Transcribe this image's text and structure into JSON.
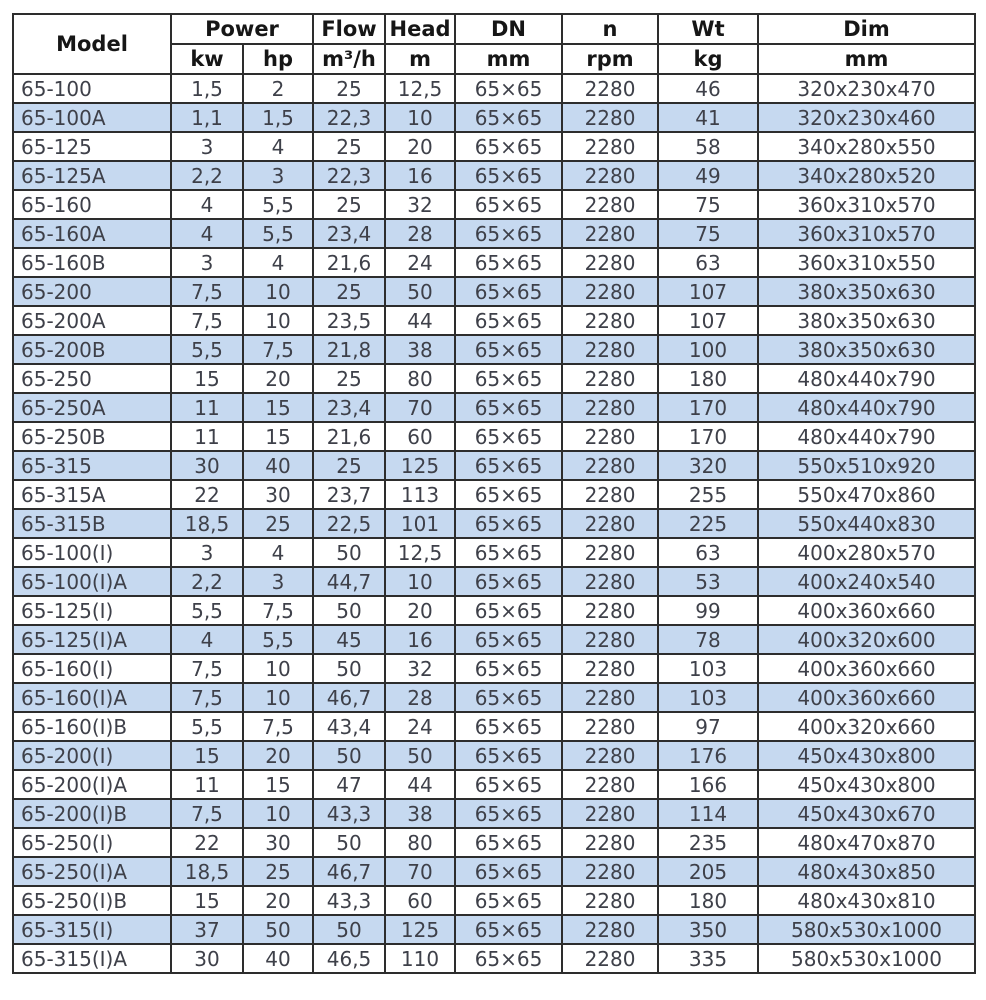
{
  "chart_data": {
    "type": "table",
    "header": {
      "model": "Model",
      "power": "Power",
      "power_units": {
        "kw": "kw",
        "hp": "hp"
      },
      "flow": {
        "label": "Flow",
        "unit": "m³/h"
      },
      "head": {
        "label": "Head",
        "unit": "m"
      },
      "dn": {
        "label": "DN",
        "unit": "mm"
      },
      "n": {
        "label": "n",
        "unit": "rpm"
      },
      "wt": {
        "label": "Wt",
        "unit": "kg"
      },
      "dim": {
        "label": "Dim",
        "unit": "mm"
      }
    },
    "rows": [
      [
        "65-100",
        "1,5",
        "2",
        "25",
        "12,5",
        "65×65",
        "2280",
        "46",
        "320x230x470"
      ],
      [
        "65-100A",
        "1,1",
        "1,5",
        "22,3",
        "10",
        "65×65",
        "2280",
        "41",
        "320x230x460"
      ],
      [
        "65-125",
        "3",
        "4",
        "25",
        "20",
        "65×65",
        "2280",
        "58",
        "340x280x550"
      ],
      [
        "65-125A",
        "2,2",
        "3",
        "22,3",
        "16",
        "65×65",
        "2280",
        "49",
        "340x280x520"
      ],
      [
        "65-160",
        "4",
        "5,5",
        "25",
        "32",
        "65×65",
        "2280",
        "75",
        "360x310x570"
      ],
      [
        "65-160A",
        "4",
        "5,5",
        "23,4",
        "28",
        "65×65",
        "2280",
        "75",
        "360x310x570"
      ],
      [
        "65-160B",
        "3",
        "4",
        "21,6",
        "24",
        "65×65",
        "2280",
        "63",
        "360x310x550"
      ],
      [
        "65-200",
        "7,5",
        "10",
        "25",
        "50",
        "65×65",
        "2280",
        "107",
        "380x350x630"
      ],
      [
        "65-200A",
        "7,5",
        "10",
        "23,5",
        "44",
        "65×65",
        "2280",
        "107",
        "380x350x630"
      ],
      [
        "65-200B",
        "5,5",
        "7,5",
        "21,8",
        "38",
        "65×65",
        "2280",
        "100",
        "380x350x630"
      ],
      [
        "65-250",
        "15",
        "20",
        "25",
        "80",
        "65×65",
        "2280",
        "180",
        "480x440x790"
      ],
      [
        "65-250A",
        "11",
        "15",
        "23,4",
        "70",
        "65×65",
        "2280",
        "170",
        "480x440x790"
      ],
      [
        "65-250B",
        "11",
        "15",
        "21,6",
        "60",
        "65×65",
        "2280",
        "170",
        "480x440x790"
      ],
      [
        "65-315",
        "30",
        "40",
        "25",
        "125",
        "65×65",
        "2280",
        "320",
        "550x510x920"
      ],
      [
        "65-315A",
        "22",
        "30",
        "23,7",
        "113",
        "65×65",
        "2280",
        "255",
        "550x470x860"
      ],
      [
        "65-315B",
        "18,5",
        "25",
        "22,5",
        "101",
        "65×65",
        "2280",
        "225",
        "550x440x830"
      ],
      [
        "65-100(I)",
        "3",
        "4",
        "50",
        "12,5",
        "65×65",
        "2280",
        "63",
        "400x280x570"
      ],
      [
        "65-100(I)A",
        "2,2",
        "3",
        "44,7",
        "10",
        "65×65",
        "2280",
        "53",
        "400x240x540"
      ],
      [
        "65-125(I)",
        "5,5",
        "7,5",
        "50",
        "20",
        "65×65",
        "2280",
        "99",
        "400x360x660"
      ],
      [
        "65-125(I)A",
        "4",
        "5,5",
        "45",
        "16",
        "65×65",
        "2280",
        "78",
        "400x320x600"
      ],
      [
        "65-160(I)",
        "7,5",
        "10",
        "50",
        "32",
        "65×65",
        "2280",
        "103",
        "400x360x660"
      ],
      [
        "65-160(I)A",
        "7,5",
        "10",
        "46,7",
        "28",
        "65×65",
        "2280",
        "103",
        "400x360x660"
      ],
      [
        "65-160(I)B",
        "5,5",
        "7,5",
        "43,4",
        "24",
        "65×65",
        "2280",
        "97",
        "400x320x660"
      ],
      [
        "65-200(I)",
        "15",
        "20",
        "50",
        "50",
        "65×65",
        "2280",
        "176",
        "450x430x800"
      ],
      [
        "65-200(I)A",
        "11",
        "15",
        "47",
        "44",
        "65×65",
        "2280",
        "166",
        "450x430x800"
      ],
      [
        "65-200(I)B",
        "7,5",
        "10",
        "43,3",
        "38",
        "65×65",
        "2280",
        "114",
        "450x430x670"
      ],
      [
        "65-250(I)",
        "22",
        "30",
        "50",
        "80",
        "65×65",
        "2280",
        "235",
        "480x470x870"
      ],
      [
        "65-250(I)A",
        "18,5",
        "25",
        "46,7",
        "70",
        "65×65",
        "2280",
        "205",
        "480x430x850"
      ],
      [
        "65-250(I)B",
        "15",
        "20",
        "43,3",
        "60",
        "65×65",
        "2280",
        "180",
        "480x430x810"
      ],
      [
        "65-315(I)",
        "37",
        "50",
        "50",
        "125",
        "65×65",
        "2280",
        "350",
        "580x530x1000"
      ],
      [
        "65-315(I)A",
        "30",
        "40",
        "46,5",
        "110",
        "65×65",
        "2280",
        "335",
        "580x530x1000"
      ]
    ],
    "colors": {
      "row_alt_background": "#c6d9f0",
      "row_background": "#ffffff",
      "border": "#2d2d2d",
      "data_text": "#3e4049",
      "header_text": "#161616"
    }
  }
}
